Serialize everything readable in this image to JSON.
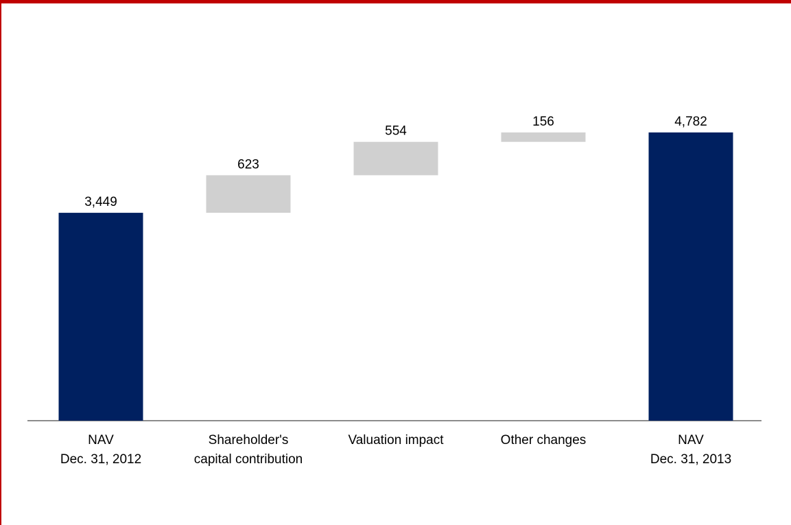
{
  "chart_data": {
    "type": "waterfall",
    "categories": [
      [
        "NAV",
        "Dec. 31, 2012"
      ],
      [
        "Shareholder's",
        "capital contribution"
      ],
      [
        "Valuation impact"
      ],
      [
        "Other changes"
      ],
      [
        "NAV",
        "Dec. 31, 2013"
      ]
    ],
    "values": [
      3449,
      623,
      554,
      156,
      4782
    ],
    "value_labels": [
      "3,449",
      "623",
      "554",
      "156",
      "4,782"
    ],
    "measures": [
      "total",
      "relative",
      "relative",
      "relative",
      "total"
    ],
    "colors": {
      "total": "#002060",
      "relative": "#d0d0d0"
    }
  }
}
